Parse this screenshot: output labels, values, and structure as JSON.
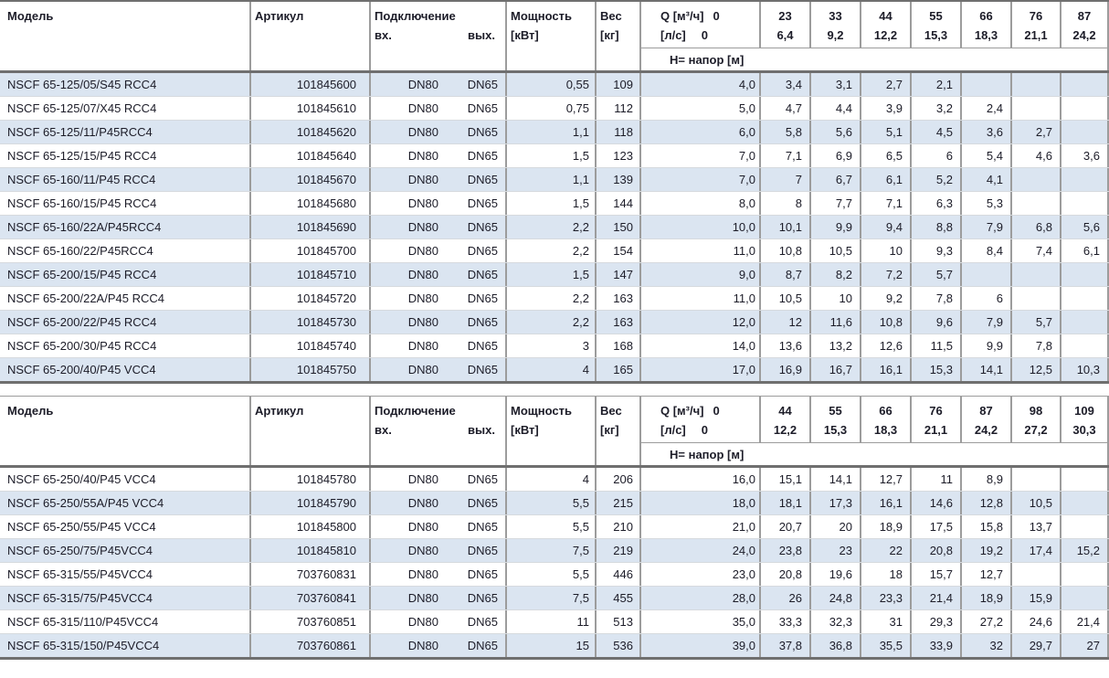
{
  "header": {
    "model": "Модель",
    "article": "Артикул",
    "connection": "Подключение",
    "conn_in": "вх.",
    "conn_out": "вых.",
    "power_line1": "Мощность",
    "power_line2": "[кВт]",
    "weight_line1": "Вес",
    "weight_line2": "[кг]",
    "q_label": "Q [м³/ч]",
    "q_zero": "0",
    "ls_label": "[л/с]",
    "ls_zero": "0",
    "h_label": "Н= напор [м]"
  },
  "tables": [
    {
      "q_cols": [
        {
          "m3h": "23",
          "ls": "6,4"
        },
        {
          "m3h": "33",
          "ls": "9,2"
        },
        {
          "m3h": "44",
          "ls": "12,2"
        },
        {
          "m3h": "55",
          "ls": "15,3"
        },
        {
          "m3h": "66",
          "ls": "18,3"
        },
        {
          "m3h": "76",
          "ls": "21,1"
        },
        {
          "m3h": "87",
          "ls": "24,2"
        }
      ],
      "rows": [
        {
          "model": "NSCF 65-125/05/S45 RCC4",
          "article": "101845600",
          "dn_in": "DN80",
          "dn_out": "DN65",
          "power": "0,55",
          "weight": "109",
          "h": [
            "4,0",
            "3,4",
            "3,1",
            "2,7",
            "2,1",
            "",
            "",
            ""
          ]
        },
        {
          "model": "NSCF 65-125/07/X45 RCC4",
          "article": "101845610",
          "dn_in": "DN80",
          "dn_out": "DN65",
          "power": "0,75",
          "weight": "112",
          "h": [
            "5,0",
            "4,7",
            "4,4",
            "3,9",
            "3,2",
            "2,4",
            "",
            ""
          ]
        },
        {
          "model": "NSCF 65-125/11/P45RCC4",
          "article": "101845620",
          "dn_in": "DN80",
          "dn_out": "DN65",
          "power": "1,1",
          "weight": "118",
          "h": [
            "6,0",
            "5,8",
            "5,6",
            "5,1",
            "4,5",
            "3,6",
            "2,7",
            ""
          ]
        },
        {
          "model": "NSCF 65-125/15/P45 RCC4",
          "article": "101845640",
          "dn_in": "DN80",
          "dn_out": "DN65",
          "power": "1,5",
          "weight": "123",
          "h": [
            "7,0",
            "7,1",
            "6,9",
            "6,5",
            "6",
            "5,4",
            "4,6",
            "3,6"
          ]
        },
        {
          "model": "NSCF 65-160/11/P45 RCC4",
          "article": "101845670",
          "dn_in": "DN80",
          "dn_out": "DN65",
          "power": "1,1",
          "weight": "139",
          "h": [
            "7,0",
            "7",
            "6,7",
            "6,1",
            "5,2",
            "4,1",
            "",
            ""
          ]
        },
        {
          "model": "NSCF 65-160/15/P45 RCC4",
          "article": "101845680",
          "dn_in": "DN80",
          "dn_out": "DN65",
          "power": "1,5",
          "weight": "144",
          "h": [
            "8,0",
            "8",
            "7,7",
            "7,1",
            "6,3",
            "5,3",
            "",
            ""
          ]
        },
        {
          "model": "NSCF 65-160/22A/P45RCC4",
          "article": "101845690",
          "dn_in": "DN80",
          "dn_out": "DN65",
          "power": "2,2",
          "weight": "150",
          "h": [
            "10,0",
            "10,1",
            "9,9",
            "9,4",
            "8,8",
            "7,9",
            "6,8",
            "5,6"
          ]
        },
        {
          "model": "NSCF 65-160/22/P45RCC4",
          "article": "101845700",
          "dn_in": "DN80",
          "dn_out": "DN65",
          "power": "2,2",
          "weight": "154",
          "h": [
            "11,0",
            "10,8",
            "10,5",
            "10",
            "9,3",
            "8,4",
            "7,4",
            "6,1"
          ]
        },
        {
          "model": "NSCF 65-200/15/P45 RCC4",
          "article": "101845710",
          "dn_in": "DN80",
          "dn_out": "DN65",
          "power": "1,5",
          "weight": "147",
          "h": [
            "9,0",
            "8,7",
            "8,2",
            "7,2",
            "5,7",
            "",
            "",
            ""
          ]
        },
        {
          "model": "NSCF 65-200/22A/P45 RCC4",
          "article": "101845720",
          "dn_in": "DN80",
          "dn_out": "DN65",
          "power": "2,2",
          "weight": "163",
          "h": [
            "11,0",
            "10,5",
            "10",
            "9,2",
            "7,8",
            "6",
            "",
            ""
          ]
        },
        {
          "model": "NSCF 65-200/22/P45 RCC4",
          "article": "101845730",
          "dn_in": "DN80",
          "dn_out": "DN65",
          "power": "2,2",
          "weight": "163",
          "h": [
            "12,0",
            "12",
            "11,6",
            "10,8",
            "9,6",
            "7,9",
            "5,7",
            ""
          ]
        },
        {
          "model": "NSCF 65-200/30/P45 RCC4",
          "article": "101845740",
          "dn_in": "DN80",
          "dn_out": "DN65",
          "power": "3",
          "weight": "168",
          "h": [
            "14,0",
            "13,6",
            "13,2",
            "12,6",
            "11,5",
            "9,9",
            "7,8",
            ""
          ]
        },
        {
          "model": "NSCF 65-200/40/P45 VCC4",
          "article": "101845750",
          "dn_in": "DN80",
          "dn_out": "DN65",
          "power": "4",
          "weight": "165",
          "h": [
            "17,0",
            "16,9",
            "16,7",
            "16,1",
            "15,3",
            "14,1",
            "12,5",
            "10,3"
          ]
        }
      ]
    },
    {
      "q_cols": [
        {
          "m3h": "44",
          "ls": "12,2"
        },
        {
          "m3h": "55",
          "ls": "15,3"
        },
        {
          "m3h": "66",
          "ls": "18,3"
        },
        {
          "m3h": "76",
          "ls": "21,1"
        },
        {
          "m3h": "87",
          "ls": "24,2"
        },
        {
          "m3h": "98",
          "ls": "27,2"
        },
        {
          "m3h": "109",
          "ls": "30,3"
        }
      ],
      "rows": [
        {
          "model": "NSCF 65-250/40/P45 VCC4",
          "article": "101845780",
          "dn_in": "DN80",
          "dn_out": "DN65",
          "power": "4",
          "weight": "206",
          "h": [
            "16,0",
            "15,1",
            "14,1",
            "12,7",
            "11",
            "8,9",
            "",
            ""
          ]
        },
        {
          "model": "NSCF 65-250/55A/P45 VCC4",
          "article": "101845790",
          "dn_in": "DN80",
          "dn_out": "DN65",
          "power": "5,5",
          "weight": "215",
          "h": [
            "18,0",
            "18,1",
            "17,3",
            "16,1",
            "14,6",
            "12,8",
            "10,5",
            ""
          ]
        },
        {
          "model": "NSCF 65-250/55/P45 VCC4",
          "article": "101845800",
          "dn_in": "DN80",
          "dn_out": "DN65",
          "power": "5,5",
          "weight": "210",
          "h": [
            "21,0",
            "20,7",
            "20",
            "18,9",
            "17,5",
            "15,8",
            "13,7",
            ""
          ]
        },
        {
          "model": "NSCF 65-250/75/P45VCC4",
          "article": "101845810",
          "dn_in": "DN80",
          "dn_out": "DN65",
          "power": "7,5",
          "weight": "219",
          "h": [
            "24,0",
            "23,8",
            "23",
            "22",
            "20,8",
            "19,2",
            "17,4",
            "15,2"
          ]
        },
        {
          "model": "NSCF 65-315/55/P45VCC4",
          "article": "703760831",
          "dn_in": "DN80",
          "dn_out": "DN65",
          "power": "5,5",
          "weight": "446",
          "h": [
            "23,0",
            "20,8",
            "19,6",
            "18",
            "15,7",
            "12,7",
            "",
            ""
          ]
        },
        {
          "model": "NSCF 65-315/75/P45VCC4",
          "article": "703760841",
          "dn_in": "DN80",
          "dn_out": "DN65",
          "power": "7,5",
          "weight": "455",
          "h": [
            "28,0",
            "26",
            "24,8",
            "23,3",
            "21,4",
            "18,9",
            "15,9",
            ""
          ]
        },
        {
          "model": "NSCF 65-315/110/P45VCC4",
          "article": "703760851",
          "dn_in": "DN80",
          "dn_out": "DN65",
          "power": "11",
          "weight": "513",
          "h": [
            "35,0",
            "33,3",
            "32,3",
            "31",
            "29,3",
            "27,2",
            "24,6",
            "21,4"
          ]
        },
        {
          "model": "NSCF 65-315/150/P45VCC4",
          "article": "703760861",
          "dn_in": "DN80",
          "dn_out": "DN65",
          "power": "15",
          "weight": "536",
          "h": [
            "39,0",
            "37,8",
            "36,8",
            "35,5",
            "33,9",
            "32",
            "29,7",
            "27"
          ]
        }
      ]
    }
  ]
}
